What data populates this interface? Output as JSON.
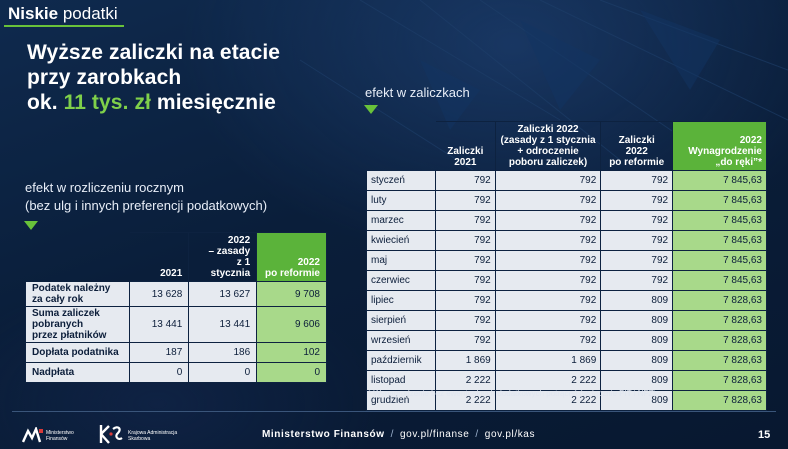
{
  "header": {
    "section_title_bold": "Niskie",
    "section_title_rest": "podatki"
  },
  "headline": {
    "line1": "Wyższe zaliczki na etacie",
    "line2": "przy zarobkach",
    "line3_pre": "ok.",
    "line3_green": "11 tys. zł",
    "line3_post": "miesięcznie"
  },
  "left": {
    "subtitle_line1": "efekt w rozliczeniu rocznym",
    "subtitle_line2": "(bez ulg i innych preferencji podatkowych)",
    "columns": [
      "2021",
      "2022\n– zasady\nz 1 stycznia",
      "2022\npo reformie"
    ],
    "rows": [
      {
        "label": "Podatek należny\nza cały rok",
        "values": [
          "13 628",
          "13 627",
          "9 708"
        ]
      },
      {
        "label": "Suma zaliczek\npobranych\nprzez płatników",
        "values": [
          "13 441",
          "13 441",
          "9 606"
        ]
      },
      {
        "label": "Dopłata podatnika",
        "values": [
          "187",
          "186",
          "102"
        ]
      },
      {
        "label": "Nadpłata",
        "values": [
          "0",
          "0",
          "0"
        ]
      }
    ]
  },
  "right": {
    "subtitle": "efekt w zaliczkach",
    "columns": [
      "Zaliczki\n2021",
      "Zaliczki 2022\n(zasady z 1 stycznia\n+ odroczenie\npoboru zaliczek)",
      "Zaliczki\n2022\npo reformie",
      "2022\nWynagrodzenie\n„do ręki”*"
    ],
    "rows": [
      {
        "label": "styczeń",
        "values": [
          "792",
          "792",
          "792",
          "7 845,63"
        ]
      },
      {
        "label": "luty",
        "values": [
          "792",
          "792",
          "792",
          "7 845,63"
        ]
      },
      {
        "label": "marzec",
        "values": [
          "792",
          "792",
          "792",
          "7 845,63"
        ]
      },
      {
        "label": "kwiecień",
        "values": [
          "792",
          "792",
          "792",
          "7 845,63"
        ]
      },
      {
        "label": "maj",
        "values": [
          "792",
          "792",
          "792",
          "7 845,63"
        ]
      },
      {
        "label": "czerwiec",
        "values": [
          "792",
          "792",
          "792",
          "7 845,63"
        ]
      },
      {
        "label": "lipiec",
        "values": [
          "792",
          "792",
          "809",
          "7 828,63"
        ]
      },
      {
        "label": "sierpień",
        "values": [
          "792",
          "792",
          "809",
          "7 828,63"
        ]
      },
      {
        "label": "wrzesień",
        "values": [
          "792",
          "792",
          "809",
          "7 828,63"
        ]
      },
      {
        "label": "październik",
        "values": [
          "1 869",
          "1 869",
          "809",
          "7 828,63"
        ]
      },
      {
        "label": "listopad",
        "values": [
          "2 222",
          "2 222",
          "809",
          "7 828,63"
        ]
      },
      {
        "label": "grudzień",
        "values": [
          "2 222",
          "2 222",
          "809",
          "7 828,63"
        ]
      }
    ],
    "footnote": "* Wynagrodzenie bez ewentualnych dodatkowych potrąceń (wyłącznie PIT i NFZ)"
  },
  "footer": {
    "ministry": "Ministerstwo Finansów",
    "link1": "gov.pl/finanse",
    "link2": "gov.pl/kas",
    "separator": "/",
    "page_number": "15",
    "logo_mf_text": "Ministerstwo\nFinansów",
    "logo_kas_text": "Krajowa Administracja\nSkarbowa"
  },
  "colors": {
    "accent_green": "#69c23a",
    "header_green": "#5bb33a",
    "cell_light": "#e6eaf0",
    "cell_green": "#a8d98a",
    "background": "#0a1e3a"
  }
}
